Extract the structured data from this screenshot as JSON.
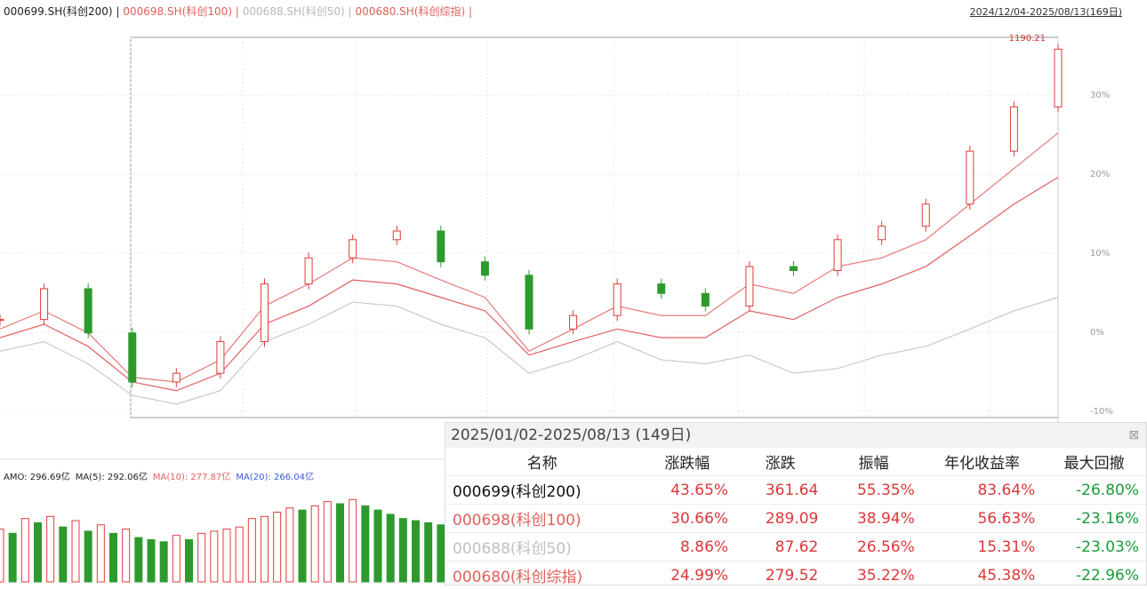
{
  "header": {
    "series_labels": [
      {
        "text": "000699.SH(科创200) |",
        "color": "#222222"
      },
      {
        "text": "000698.SH(科创100) |",
        "color": "#e0605a"
      },
      {
        "text": "000688.SH(科创50) |",
        "color": "#b8b8b8"
      },
      {
        "text": "000680.SH(科创综指) |",
        "color": "#e0605a"
      }
    ],
    "date_range": "2024/12/04-2025/08/13(169日)"
  },
  "chart": {
    "type": "candlestick",
    "max_label": "1190.21",
    "xlim": [
      0,
      168
    ],
    "ylim": [
      -10.8,
      37.3
    ],
    "yticks": [
      {
        "value": 30,
        "label": "30%"
      },
      {
        "value": 20,
        "label": "20%"
      },
      {
        "value": 10,
        "label": "10%"
      },
      {
        "value": 0,
        "label": "0%"
      },
      {
        "value": -10,
        "label": "-10%"
      }
    ],
    "grid": true,
    "up_color": "#e03b3b",
    "down_color": "#2e9a2e",
    "x": [
      0,
      7,
      14,
      21,
      28,
      35,
      42,
      49,
      56,
      63,
      70,
      77,
      84,
      91,
      98,
      105,
      112,
      119,
      126,
      133,
      140,
      147,
      154,
      161,
      168
    ],
    "series": [
      {
        "name": "000699",
        "style": "candle",
        "color": "#e03b3b",
        "values": [
          1.6,
          5.5,
          -0.1,
          -6.3,
          -5.2,
          -1.2,
          6.1,
          9.4,
          11.7,
          12.8,
          8.9,
          7.2,
          0.4,
          2.1,
          6.1,
          4.9,
          3.3,
          8.3,
          7.8,
          11.7,
          13.4,
          16.2,
          22.9,
          28.5,
          35.8
        ]
      },
      {
        "name": "000698",
        "style": "line",
        "color": "#e87a7a",
        "values": [
          0.4,
          2.7,
          -0.1,
          -5.7,
          -6.3,
          -3.5,
          3.3,
          6.1,
          9.4,
          8.9,
          6.6,
          4.4,
          -2.4,
          0.4,
          3.3,
          2.1,
          2.1,
          6.1,
          4.9,
          8.3,
          9.4,
          11.7,
          16.2,
          20.7,
          25.2
        ]
      },
      {
        "name": "000688",
        "style": "line",
        "color": "#c8c8c8",
        "values": [
          -2.4,
          -1.2,
          -4.0,
          -8.0,
          -9.1,
          -7.4,
          -1.2,
          1.0,
          3.8,
          3.3,
          1.0,
          -0.7,
          -5.2,
          -3.5,
          -1.2,
          -3.5,
          -4.0,
          -2.9,
          -5.2,
          -4.6,
          -2.9,
          -1.8,
          0.4,
          2.7,
          4.4
        ]
      },
      {
        "name": "000680",
        "style": "line",
        "color": "#e06060",
        "values": [
          -0.7,
          1.0,
          -1.8,
          -6.3,
          -7.4,
          -5.2,
          1.0,
          3.3,
          6.6,
          6.1,
          4.4,
          2.7,
          -2.9,
          -1.2,
          0.4,
          -0.7,
          -0.7,
          2.7,
          1.6,
          4.4,
          6.1,
          8.3,
          12.2,
          16.2,
          19.6
        ]
      }
    ]
  },
  "volume": {
    "indicators": [
      {
        "text": "AMO: 296.69亿",
        "color": "#222222"
      },
      {
        "text": "MA(5): 292.06亿",
        "color": "#222222"
      },
      {
        "text": "MA(10): 277.87亿",
        "color": "#e0605a"
      },
      {
        "text": "MA(20): 266.04亿",
        "color": "#3a5bd9"
      }
    ],
    "xlim": [
      0,
      168
    ],
    "ylim": [
      0,
      450
    ],
    "x": [
      0,
      2,
      4,
      6,
      8,
      10,
      12,
      14,
      16,
      18,
      20,
      22,
      24,
      26,
      28,
      30,
      32,
      34,
      36,
      38,
      40,
      42,
      44,
      46,
      48,
      50,
      52,
      54,
      56,
      58,
      60,
      62,
      64,
      66,
      68,
      70
    ],
    "values": [
      250,
      230,
      300,
      280,
      310,
      260,
      290,
      240,
      270,
      230,
      250,
      210,
      200,
      190,
      220,
      200,
      230,
      240,
      250,
      260,
      300,
      310,
      330,
      350,
      340,
      360,
      380,
      370,
      390,
      360,
      340,
      320,
      300,
      290,
      280,
      270
    ]
  },
  "table": {
    "title": "2025/01/02-2025/08/13 (149日)",
    "columns": [
      "名称",
      "涨跌幅",
      "涨跌",
      "振幅",
      "年化收益率",
      "最大回撤"
    ],
    "row_colors": [
      "#111111",
      "#e0605a",
      "#c0c0c0",
      "#e0605a"
    ],
    "positive_color": "#d9383a",
    "negative_color": "#1a9a3a",
    "rows": [
      [
        "000699(科创200)",
        "43.65%",
        "361.64",
        "55.35%",
        "83.64%",
        "-26.80%"
      ],
      [
        "000698(科创100)",
        "30.66%",
        "289.09",
        "38.94%",
        "56.63%",
        "-23.16%"
      ],
      [
        "000688(科创50)",
        "8.86%",
        "87.62",
        "26.56%",
        "15.31%",
        "-23.03%"
      ],
      [
        "000680(科创综指)",
        "24.99%",
        "279.52",
        "35.22%",
        "45.38%",
        "-22.96%"
      ]
    ]
  }
}
